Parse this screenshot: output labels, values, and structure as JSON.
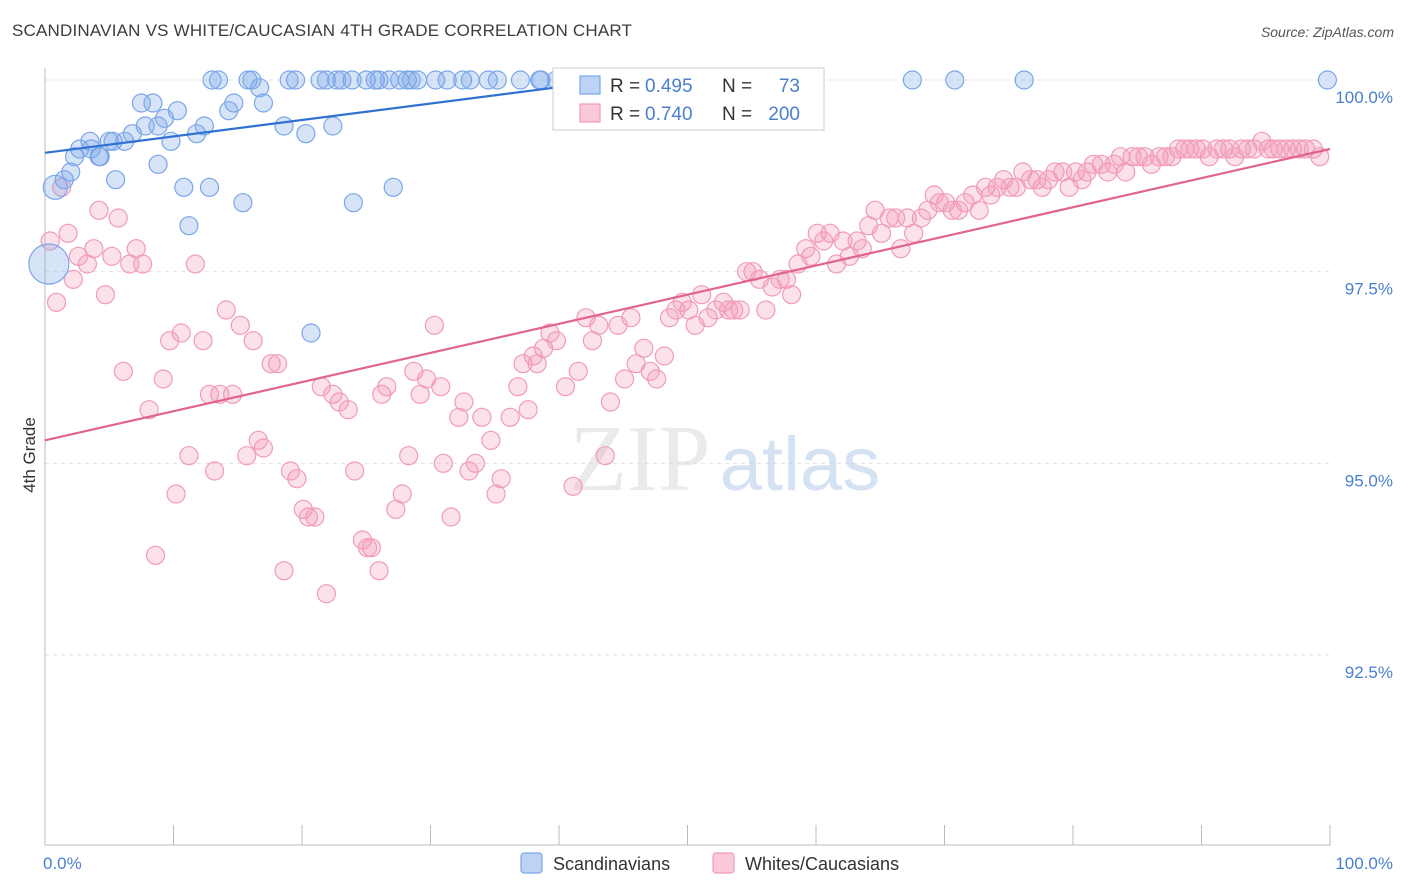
{
  "header": {
    "title": "SCANDINAVIAN VS WHITE/CAUCASIAN 4TH GRADE CORRELATION CHART",
    "source": "Source: ZipAtlas.com"
  },
  "watermark": {
    "zip": "ZIP",
    "atlas": "atlas"
  },
  "legend_box": {
    "r_label": "R =",
    "n_label": "N =",
    "rows": [
      {
        "r": "0.495",
        "n": "73",
        "color": "#7aa6e8"
      },
      {
        "r": "0.740",
        "n": "200",
        "color": "#f29ab8"
      }
    ]
  },
  "chart_data": {
    "type": "scatter",
    "title": "SCANDINAVIAN VS WHITE/CAUCASIAN 4TH GRADE CORRELATION CHART",
    "ylabel": "4th Grade",
    "xlabel": "",
    "x_tick_labels": [
      "0.0%",
      "100.0%"
    ],
    "y_tick_labels": [
      "100.0%",
      "97.5%",
      "95.0%",
      "92.5%"
    ],
    "y_ticks": [
      100.0,
      97.5,
      95.0,
      92.5
    ],
    "xlim": [
      0,
      100
    ],
    "ylim": [
      90.0,
      100.25
    ],
    "grid": true,
    "legend_placement": "bottom-center",
    "series": [
      {
        "name": "Scandinavians",
        "color": "#7aa6e8",
        "r": 0.495,
        "n": 73,
        "trend": {
          "x": [
            0,
            42
          ],
          "y": [
            99.05,
            99.95
          ]
        },
        "points": [
          [
            0.3,
            97.6
          ],
          [
            0.8,
            98.6
          ],
          [
            1.5,
            98.7
          ],
          [
            2,
            98.8
          ],
          [
            2.3,
            99.0
          ],
          [
            2.7,
            99.1
          ],
          [
            3.5,
            99.2
          ],
          [
            3.6,
            99.1
          ],
          [
            4.2,
            99.0
          ],
          [
            4.3,
            99.0
          ],
          [
            5,
            99.2
          ],
          [
            5.3,
            99.2
          ],
          [
            5.5,
            98.7
          ],
          [
            6.2,
            99.2
          ],
          [
            6.8,
            99.3
          ],
          [
            7.5,
            99.7
          ],
          [
            7.8,
            99.4
          ],
          [
            8.4,
            99.7
          ],
          [
            8.8,
            98.9
          ],
          [
            8.8,
            99.4
          ],
          [
            9.3,
            99.5
          ],
          [
            9.8,
            99.2
          ],
          [
            10.3,
            99.6
          ],
          [
            10.8,
            98.6
          ],
          [
            11.2,
            98.1
          ],
          [
            11.8,
            99.3
          ],
          [
            12.4,
            99.4
          ],
          [
            12.8,
            98.6
          ],
          [
            13,
            100
          ],
          [
            13.5,
            100
          ],
          [
            14.3,
            99.6
          ],
          [
            14.7,
            99.7
          ],
          [
            15.4,
            98.4
          ],
          [
            15.8,
            100
          ],
          [
            16.1,
            100
          ],
          [
            16.7,
            99.9
          ],
          [
            17,
            99.7
          ],
          [
            18.6,
            99.4
          ],
          [
            19,
            100
          ],
          [
            19.5,
            100
          ],
          [
            20.3,
            99.3
          ],
          [
            20.7,
            96.7
          ],
          [
            21.4,
            100
          ],
          [
            21.9,
            100
          ],
          [
            22.4,
            99.4
          ],
          [
            22.7,
            100
          ],
          [
            23.1,
            100
          ],
          [
            23.9,
            100
          ],
          [
            24,
            98.4
          ],
          [
            25,
            100
          ],
          [
            25.7,
            100
          ],
          [
            26,
            100
          ],
          [
            26.8,
            100
          ],
          [
            27.1,
            98.6
          ],
          [
            27.6,
            100
          ],
          [
            28.2,
            100
          ],
          [
            28.5,
            100
          ],
          [
            29,
            100
          ],
          [
            30.4,
            100
          ],
          [
            31.3,
            100
          ],
          [
            32.5,
            100
          ],
          [
            33.1,
            100
          ],
          [
            34.5,
            100
          ],
          [
            35.2,
            100
          ],
          [
            37,
            100
          ],
          [
            38.5,
            100
          ],
          [
            38.6,
            100
          ],
          [
            39.8,
            100
          ],
          [
            40.3,
            100
          ],
          [
            67.5,
            100
          ],
          [
            70.8,
            100
          ],
          [
            76.2,
            100
          ],
          [
            99.8,
            100
          ]
        ]
      },
      {
        "name": "Whites/Caucasians",
        "color": "#f29ab8",
        "r": 0.74,
        "n": 200,
        "trend": {
          "x": [
            0,
            100
          ],
          "y": [
            95.3,
            99.1
          ]
        },
        "points": [
          [
            0.4,
            97.9
          ],
          [
            0.9,
            97.1
          ],
          [
            1.3,
            98.6
          ],
          [
            1.8,
            98.0
          ],
          [
            2.2,
            97.4
          ],
          [
            2.6,
            97.7
          ],
          [
            3.3,
            97.6
          ],
          [
            3.8,
            97.8
          ],
          [
            4.2,
            98.3
          ],
          [
            4.7,
            97.2
          ],
          [
            5.2,
            97.7
          ],
          [
            5.7,
            98.2
          ],
          [
            6.1,
            96.2
          ],
          [
            6.6,
            97.6
          ],
          [
            7.1,
            97.8
          ],
          [
            7.6,
            97.6
          ],
          [
            8.1,
            95.7
          ],
          [
            8.6,
            93.8
          ],
          [
            9.2,
            96.1
          ],
          [
            9.7,
            96.6
          ],
          [
            10.2,
            94.6
          ],
          [
            10.6,
            96.7
          ],
          [
            11.2,
            95.1
          ],
          [
            11.7,
            97.6
          ],
          [
            12.3,
            96.6
          ],
          [
            12.8,
            95.9
          ],
          [
            13.2,
            94.9
          ],
          [
            13.6,
            95.9
          ],
          [
            14.1,
            97.0
          ],
          [
            14.6,
            95.9
          ],
          [
            15.2,
            96.8
          ],
          [
            15.7,
            95.1
          ],
          [
            16.2,
            96.6
          ],
          [
            16.6,
            95.3
          ],
          [
            17.0,
            95.2
          ],
          [
            17.6,
            96.3
          ],
          [
            18.1,
            96.3
          ],
          [
            18.6,
            93.6
          ],
          [
            19.1,
            94.9
          ],
          [
            19.6,
            94.8
          ],
          [
            20.1,
            94.4
          ],
          [
            20.5,
            94.3
          ],
          [
            21.0,
            94.3
          ],
          [
            21.5,
            96.0
          ],
          [
            21.9,
            93.3
          ],
          [
            22.4,
            95.9
          ],
          [
            22.9,
            95.8
          ],
          [
            23.6,
            95.7
          ],
          [
            24.1,
            94.9
          ],
          [
            24.7,
            94.0
          ],
          [
            25.1,
            93.9
          ],
          [
            25.4,
            93.9
          ],
          [
            26.0,
            93.6
          ],
          [
            26.2,
            95.9
          ],
          [
            26.6,
            96.0
          ],
          [
            27.3,
            94.4
          ],
          [
            27.8,
            94.6
          ],
          [
            28.3,
            95.1
          ],
          [
            28.7,
            96.2
          ],
          [
            29.2,
            95.9
          ],
          [
            29.7,
            96.1
          ],
          [
            30.3,
            96.8
          ],
          [
            30.8,
            96.0
          ],
          [
            31.0,
            95.0
          ],
          [
            31.6,
            94.3
          ],
          [
            32.2,
            95.6
          ],
          [
            32.6,
            95.8
          ],
          [
            33.0,
            94.9
          ],
          [
            33.5,
            95.0
          ],
          [
            34.0,
            95.6
          ],
          [
            34.7,
            95.3
          ],
          [
            35.1,
            94.6
          ],
          [
            35.5,
            94.8
          ],
          [
            36.2,
            95.6
          ],
          [
            36.8,
            96.0
          ],
          [
            37.2,
            96.3
          ],
          [
            37.6,
            95.7
          ],
          [
            38.0,
            96.4
          ],
          [
            38.3,
            96.3
          ],
          [
            38.8,
            96.5
          ],
          [
            39.3,
            96.7
          ],
          [
            39.8,
            96.6
          ],
          [
            40.5,
            96.0
          ],
          [
            41.1,
            94.7
          ],
          [
            41.5,
            96.2
          ],
          [
            42.1,
            96.9
          ],
          [
            42.6,
            96.6
          ],
          [
            43.1,
            96.8
          ],
          [
            43.6,
            95.1
          ],
          [
            44.0,
            95.8
          ],
          [
            44.6,
            96.8
          ],
          [
            45.1,
            96.1
          ],
          [
            45.6,
            96.9
          ],
          [
            46.0,
            96.3
          ],
          [
            46.6,
            96.5
          ],
          [
            47.1,
            96.2
          ],
          [
            47.6,
            96.1
          ],
          [
            48.2,
            96.4
          ],
          [
            48.6,
            96.9
          ],
          [
            49.1,
            97.0
          ],
          [
            49.6,
            97.1
          ],
          [
            50.1,
            97.0
          ],
          [
            50.6,
            96.8
          ],
          [
            51.1,
            97.2
          ],
          [
            51.6,
            96.9
          ],
          [
            52.2,
            97.0
          ],
          [
            52.8,
            97.1
          ],
          [
            53.2,
            97.0
          ],
          [
            53.6,
            97.0
          ],
          [
            54.1,
            97.0
          ],
          [
            54.6,
            97.5
          ],
          [
            55.1,
            97.5
          ],
          [
            55.6,
            97.4
          ],
          [
            56.1,
            97.0
          ],
          [
            56.6,
            97.3
          ],
          [
            57.2,
            97.4
          ],
          [
            57.7,
            97.4
          ],
          [
            58.1,
            97.2
          ],
          [
            58.6,
            97.6
          ],
          [
            59.2,
            97.8
          ],
          [
            59.6,
            97.7
          ],
          [
            60.1,
            98.0
          ],
          [
            60.6,
            97.9
          ],
          [
            61.1,
            98.0
          ],
          [
            61.6,
            97.6
          ],
          [
            62.1,
            97.9
          ],
          [
            62.6,
            97.7
          ],
          [
            63.2,
            97.9
          ],
          [
            63.6,
            97.8
          ],
          [
            64.1,
            98.1
          ],
          [
            64.6,
            98.3
          ],
          [
            65.1,
            98.0
          ],
          [
            65.7,
            98.2
          ],
          [
            66.2,
            98.2
          ],
          [
            66.6,
            97.8
          ],
          [
            67.1,
            98.2
          ],
          [
            67.6,
            98.0
          ],
          [
            68.2,
            98.2
          ],
          [
            68.7,
            98.3
          ],
          [
            69.2,
            98.5
          ],
          [
            69.6,
            98.4
          ],
          [
            70.1,
            98.4
          ],
          [
            70.6,
            98.3
          ],
          [
            71.1,
            98.3
          ],
          [
            71.6,
            98.4
          ],
          [
            72.2,
            98.5
          ],
          [
            72.7,
            98.3
          ],
          [
            73.2,
            98.6
          ],
          [
            73.6,
            98.5
          ],
          [
            74.1,
            98.6
          ],
          [
            74.6,
            98.7
          ],
          [
            75.1,
            98.6
          ],
          [
            75.6,
            98.6
          ],
          [
            76.1,
            98.8
          ],
          [
            76.7,
            98.7
          ],
          [
            77.2,
            98.7
          ],
          [
            77.6,
            98.6
          ],
          [
            78.1,
            98.7
          ],
          [
            78.6,
            98.8
          ],
          [
            79.2,
            98.8
          ],
          [
            79.7,
            98.6
          ],
          [
            80.2,
            98.8
          ],
          [
            80.7,
            98.7
          ],
          [
            81.1,
            98.8
          ],
          [
            81.6,
            98.9
          ],
          [
            82.2,
            98.9
          ],
          [
            82.7,
            98.8
          ],
          [
            83.2,
            98.9
          ],
          [
            83.7,
            99.0
          ],
          [
            84.1,
            98.8
          ],
          [
            84.6,
            99.0
          ],
          [
            85.1,
            99.0
          ],
          [
            85.6,
            99.0
          ],
          [
            86.1,
            98.9
          ],
          [
            86.7,
            99.0
          ],
          [
            87.2,
            99.0
          ],
          [
            87.7,
            99.0
          ],
          [
            88.2,
            99.1
          ],
          [
            88.7,
            99.1
          ],
          [
            89.1,
            99.1
          ],
          [
            89.6,
            99.1
          ],
          [
            90.1,
            99.1
          ],
          [
            90.6,
            99.0
          ],
          [
            91.2,
            99.1
          ],
          [
            91.7,
            99.1
          ],
          [
            92.2,
            99.1
          ],
          [
            92.6,
            99.0
          ],
          [
            93.1,
            99.1
          ],
          [
            93.6,
            99.1
          ],
          [
            94.1,
            99.1
          ],
          [
            94.7,
            99.2
          ],
          [
            95.2,
            99.1
          ],
          [
            95.6,
            99.1
          ],
          [
            96.1,
            99.1
          ],
          [
            96.6,
            99.1
          ],
          [
            97.1,
            99.1
          ],
          [
            97.6,
            99.1
          ],
          [
            98.1,
            99.1
          ],
          [
            98.7,
            99.1
          ],
          [
            99.2,
            99.0
          ]
        ]
      }
    ]
  }
}
